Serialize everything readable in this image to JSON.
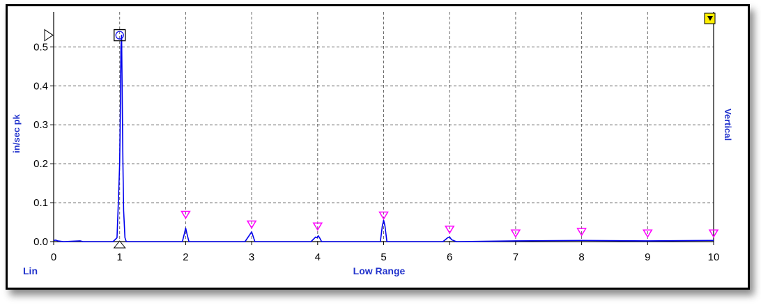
{
  "chart_data": {
    "type": "line",
    "ylabel": "in/sec pk",
    "xlabel": "Low Range",
    "right_label": "Vertical",
    "scale_label": "Lin",
    "xlim": [
      0,
      10
    ],
    "ylim": [
      0,
      0.59
    ],
    "x_ticks": [
      0,
      1,
      2,
      3,
      4,
      5,
      6,
      7,
      8,
      9,
      10
    ],
    "x_tick_labels": [
      "0",
      "1",
      "2",
      "3",
      "4",
      "5",
      "6",
      "7",
      "8",
      "9",
      "10"
    ],
    "y_ticks": [
      0,
      0.1,
      0.2,
      0.3,
      0.4,
      0.5
    ],
    "y_tick_labels": [
      "0.0",
      "0.1",
      "0.2",
      "0.3",
      "0.4",
      "0.5"
    ],
    "grid": true,
    "series": [
      {
        "x": [
          0,
          0.03,
          0.06,
          0.1,
          0.15,
          0.4,
          0.42,
          0.44,
          0.9,
          0.96,
          0.98,
          1.0,
          1.01,
          1.02,
          1.03,
          1.04,
          1.05,
          1.06,
          1.08,
          1.1,
          1.3,
          1.95,
          1.98,
          2.0,
          2.02,
          2.05,
          2.9,
          2.98,
          3.0,
          3.02,
          3.05,
          3.9,
          3.97,
          3.99,
          4.01,
          4.03,
          4.06,
          4.95,
          4.98,
          5.0,
          5.02,
          5.05,
          5.9,
          5.97,
          6.0,
          6.03,
          6.1,
          7.0,
          8.0,
          9.0,
          10.0
        ],
        "y": [
          0.003,
          0.004,
          0.002,
          0.001,
          0.0,
          0.002,
          0.001,
          0.0,
          0.0,
          0.01,
          0.1,
          0.2,
          0.32,
          0.5,
          0.53,
          0.35,
          0.2,
          0.08,
          0.01,
          0.0,
          0.0,
          0.0,
          0.02,
          0.035,
          0.02,
          0.0,
          0.0,
          0.02,
          0.025,
          0.015,
          0.0,
          0.0,
          0.012,
          0.01,
          0.015,
          0.01,
          0.0,
          0.0,
          0.04,
          0.055,
          0.04,
          0.0,
          0.0,
          0.01,
          0.012,
          0.005,
          0.0,
          0.002,
          0.003,
          0.002,
          0.003
        ]
      }
    ],
    "peak_markers": {
      "x": [
        2,
        3,
        4,
        5,
        6,
        7,
        8,
        9,
        10
      ],
      "y": [
        0.06,
        0.035,
        0.03,
        0.058,
        0.022,
        0.012,
        0.016,
        0.012,
        0.012
      ]
    },
    "cursor_marker": {
      "x": 1.0,
      "y": 0.53
    },
    "colors": {
      "trace": "#0000ee",
      "axis_text": "#2233cc",
      "tick_text": "#000000",
      "grid": "#666666",
      "peak_marker": "#ff00ff",
      "flag": "#ffee00"
    },
    "icons": {
      "left_arrow": "triangle-pointer-right-icon",
      "bottom_arrow": "triangle-pointer-up-icon",
      "cursor": "square-circle-cursor-icon",
      "flag": "yellow-down-triangle-flag-icon"
    }
  }
}
